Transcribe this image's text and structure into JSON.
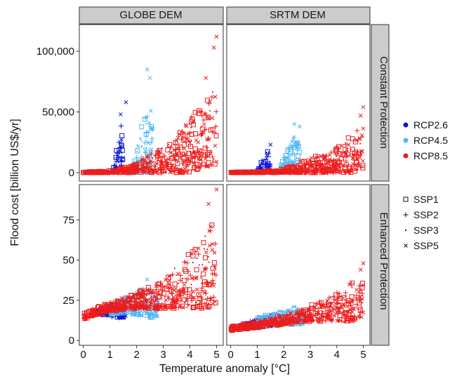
{
  "chart_data": {
    "type": "scatter",
    "title": "",
    "xlabel": "Temperature anomaly [°C]",
    "ylabel": "Flood cost [billion US$/yr]",
    "grid": false,
    "legend_position": "right",
    "columns": [
      "GLOBE DEM",
      "SRTM DEM"
    ],
    "rows": [
      "Constant Protection",
      "Enhanced Protection"
    ],
    "x_range": [
      -0.15,
      5.25
    ],
    "x_ticks": [
      0,
      1,
      2,
      3,
      4,
      5
    ],
    "x_tick_labels": [
      "0",
      "1",
      "2",
      "3",
      "4",
      "5"
    ],
    "row_axes": [
      {
        "ylim": [
          -7000,
          122000
        ],
        "ticks": [
          0,
          50000,
          100000
        ],
        "tick_labels": [
          "0",
          "50,000",
          "100,000"
        ]
      },
      {
        "ylim": [
          -3,
          97
        ],
        "ticks": [
          0,
          25,
          50,
          75
        ],
        "tick_labels": [
          "0",
          "25",
          "50",
          "75"
        ]
      }
    ],
    "scenarios": [
      {
        "name": "RCP2.6",
        "color": "#0a14d6"
      },
      {
        "name": "RCP4.5",
        "color": "#4fb8f2"
      },
      {
        "name": "RCP8.5",
        "color": "#ee1c1c"
      }
    ],
    "shape_legend": [
      "SSP1",
      "SSP2",
      "SSP3",
      "SSP5"
    ],
    "panels": [
      {
        "column": "GLOBE DEM",
        "row": "Constant Protection",
        "series": [
          {
            "name": "RCP2.6",
            "ranges": [
              [
                1.1,
                0,
                800
              ],
              [
                1.2,
                0,
                12000
              ],
              [
                1.3,
                0,
                28000
              ],
              [
                1.4,
                0,
                38000
              ],
              [
                1.5,
                0,
                42000
              ]
            ],
            "max_points": [
              [
                1.4,
                48000
              ],
              [
                1.6,
                58000
              ]
            ]
          },
          {
            "name": "RCP4.5",
            "ranges": [
              [
                1.8,
                0,
                3000
              ],
              [
                2.0,
                0,
                20000
              ],
              [
                2.2,
                0,
                45000
              ],
              [
                2.4,
                0,
                58000
              ],
              [
                2.6,
                0,
                52000
              ]
            ],
            "max_points": [
              [
                2.4,
                85000
              ],
              [
                2.5,
                78000
              ]
            ]
          },
          {
            "name": "RCP8.5",
            "ranges": [
              [
                0.0,
                0,
                500
              ],
              [
                1.0,
                0,
                1500
              ],
              [
                1.8,
                0,
                6000
              ],
              [
                2.5,
                0,
                15000
              ],
              [
                3.0,
                0,
                22000
              ],
              [
                3.5,
                0,
                30000
              ],
              [
                4.0,
                0,
                45000
              ],
              [
                4.5,
                5000,
                60000
              ],
              [
                5.0,
                5000,
                75000
              ]
            ],
            "max_points": [
              [
                4.6,
                78000
              ],
              [
                4.9,
                103000
              ],
              [
                5.0,
                112000
              ]
            ]
          }
        ]
      },
      {
        "column": "SRTM DEM",
        "row": "Constant Protection",
        "series": [
          {
            "name": "RCP2.6",
            "ranges": [
              [
                1.0,
                0,
                500
              ],
              [
                1.1,
                0,
                6000
              ],
              [
                1.2,
                0,
                12000
              ],
              [
                1.3,
                0,
                16000
              ],
              [
                1.4,
                0,
                18000
              ],
              [
                1.5,
                0,
                17000
              ]
            ],
            "max_points": [
              [
                1.5,
                23000
              ]
            ]
          },
          {
            "name": "RCP4.5",
            "ranges": [
              [
                1.8,
                0,
                2000
              ],
              [
                2.0,
                0,
                12000
              ],
              [
                2.2,
                0,
                22000
              ],
              [
                2.4,
                0,
                32000
              ],
              [
                2.6,
                0,
                26000
              ]
            ],
            "max_points": [
              [
                2.4,
                40000
              ],
              [
                2.6,
                38000
              ]
            ]
          },
          {
            "name": "RCP8.5",
            "ranges": [
              [
                0.0,
                0,
                300
              ],
              [
                1.0,
                0,
                800
              ],
              [
                2.0,
                0,
                3000
              ],
              [
                2.5,
                0,
                8000
              ],
              [
                3.0,
                0,
                12000
              ],
              [
                3.5,
                0,
                16000
              ],
              [
                4.0,
                0,
                20000
              ],
              [
                4.5,
                0,
                30000
              ],
              [
                5.0,
                3000,
                40000
              ]
            ],
            "max_points": [
              [
                4.9,
                47000
              ],
              [
                5.0,
                54000
              ]
            ]
          }
        ]
      },
      {
        "column": "GLOBE DEM",
        "row": "Enhanced Protection",
        "series": [
          {
            "name": "RCP2.6",
            "ranges": [
              [
                0.5,
                16,
                19
              ],
              [
                0.8,
                16,
                21
              ],
              [
                1.0,
                15,
                22
              ],
              [
                1.2,
                14,
                23
              ],
              [
                1.4,
                14,
                24
              ],
              [
                1.6,
                15,
                24
              ]
            ],
            "max_points": [
              [
                1.6,
                27
              ]
            ]
          },
          {
            "name": "RCP4.5",
            "ranges": [
              [
                1.0,
                16,
                22
              ],
              [
                1.5,
                17,
                26
              ],
              [
                2.0,
                16,
                30
              ],
              [
                2.3,
                14,
                33
              ],
              [
                2.6,
                14,
                32
              ],
              [
                2.8,
                15,
                28
              ]
            ],
            "max_points": [
              [
                2.4,
                38
              ]
            ]
          },
          {
            "name": "RCP8.5",
            "ranges": [
              [
                0.0,
                13,
                17
              ],
              [
                0.5,
                16,
                21
              ],
              [
                1.0,
                18,
                24
              ],
              [
                2.0,
                20,
                30
              ],
              [
                3.0,
                20,
                38
              ],
              [
                4.0,
                20,
                55
              ],
              [
                4.5,
                20,
                65
              ],
              [
                5.0,
                22,
                80
              ]
            ],
            "max_points": [
              [
                4.7,
                85
              ],
              [
                5.0,
                94
              ]
            ]
          }
        ]
      },
      {
        "column": "SRTM DEM",
        "row": "Enhanced Protection",
        "series": [
          {
            "name": "RCP2.6",
            "ranges": [
              [
                0.3,
                7,
                10
              ],
              [
                0.7,
                8,
                12
              ],
              [
                1.0,
                8,
                13
              ],
              [
                1.3,
                9,
                14
              ],
              [
                1.6,
                9,
                15
              ]
            ],
            "max_points": [
              [
                1.5,
                16
              ]
            ]
          },
          {
            "name": "RCP4.5",
            "ranges": [
              [
                1.0,
                9,
                14
              ],
              [
                1.5,
                10,
                17
              ],
              [
                2.0,
                10,
                19
              ],
              [
                2.5,
                10,
                21
              ],
              [
                2.8,
                11,
                18
              ]
            ],
            "max_points": [
              [
                2.4,
                21
              ]
            ]
          },
          {
            "name": "RCP8.5",
            "ranges": [
              [
                0.0,
                6,
                9
              ],
              [
                1.0,
                8,
                12
              ],
              [
                2.0,
                10,
                16
              ],
              [
                3.0,
                12,
                22
              ],
              [
                4.0,
                12,
                30
              ],
              [
                4.5,
                12,
                36
              ],
              [
                5.0,
                14,
                40
              ]
            ],
            "max_points": [
              [
                4.9,
                44
              ],
              [
                5.0,
                48
              ]
            ]
          }
        ]
      }
    ]
  }
}
